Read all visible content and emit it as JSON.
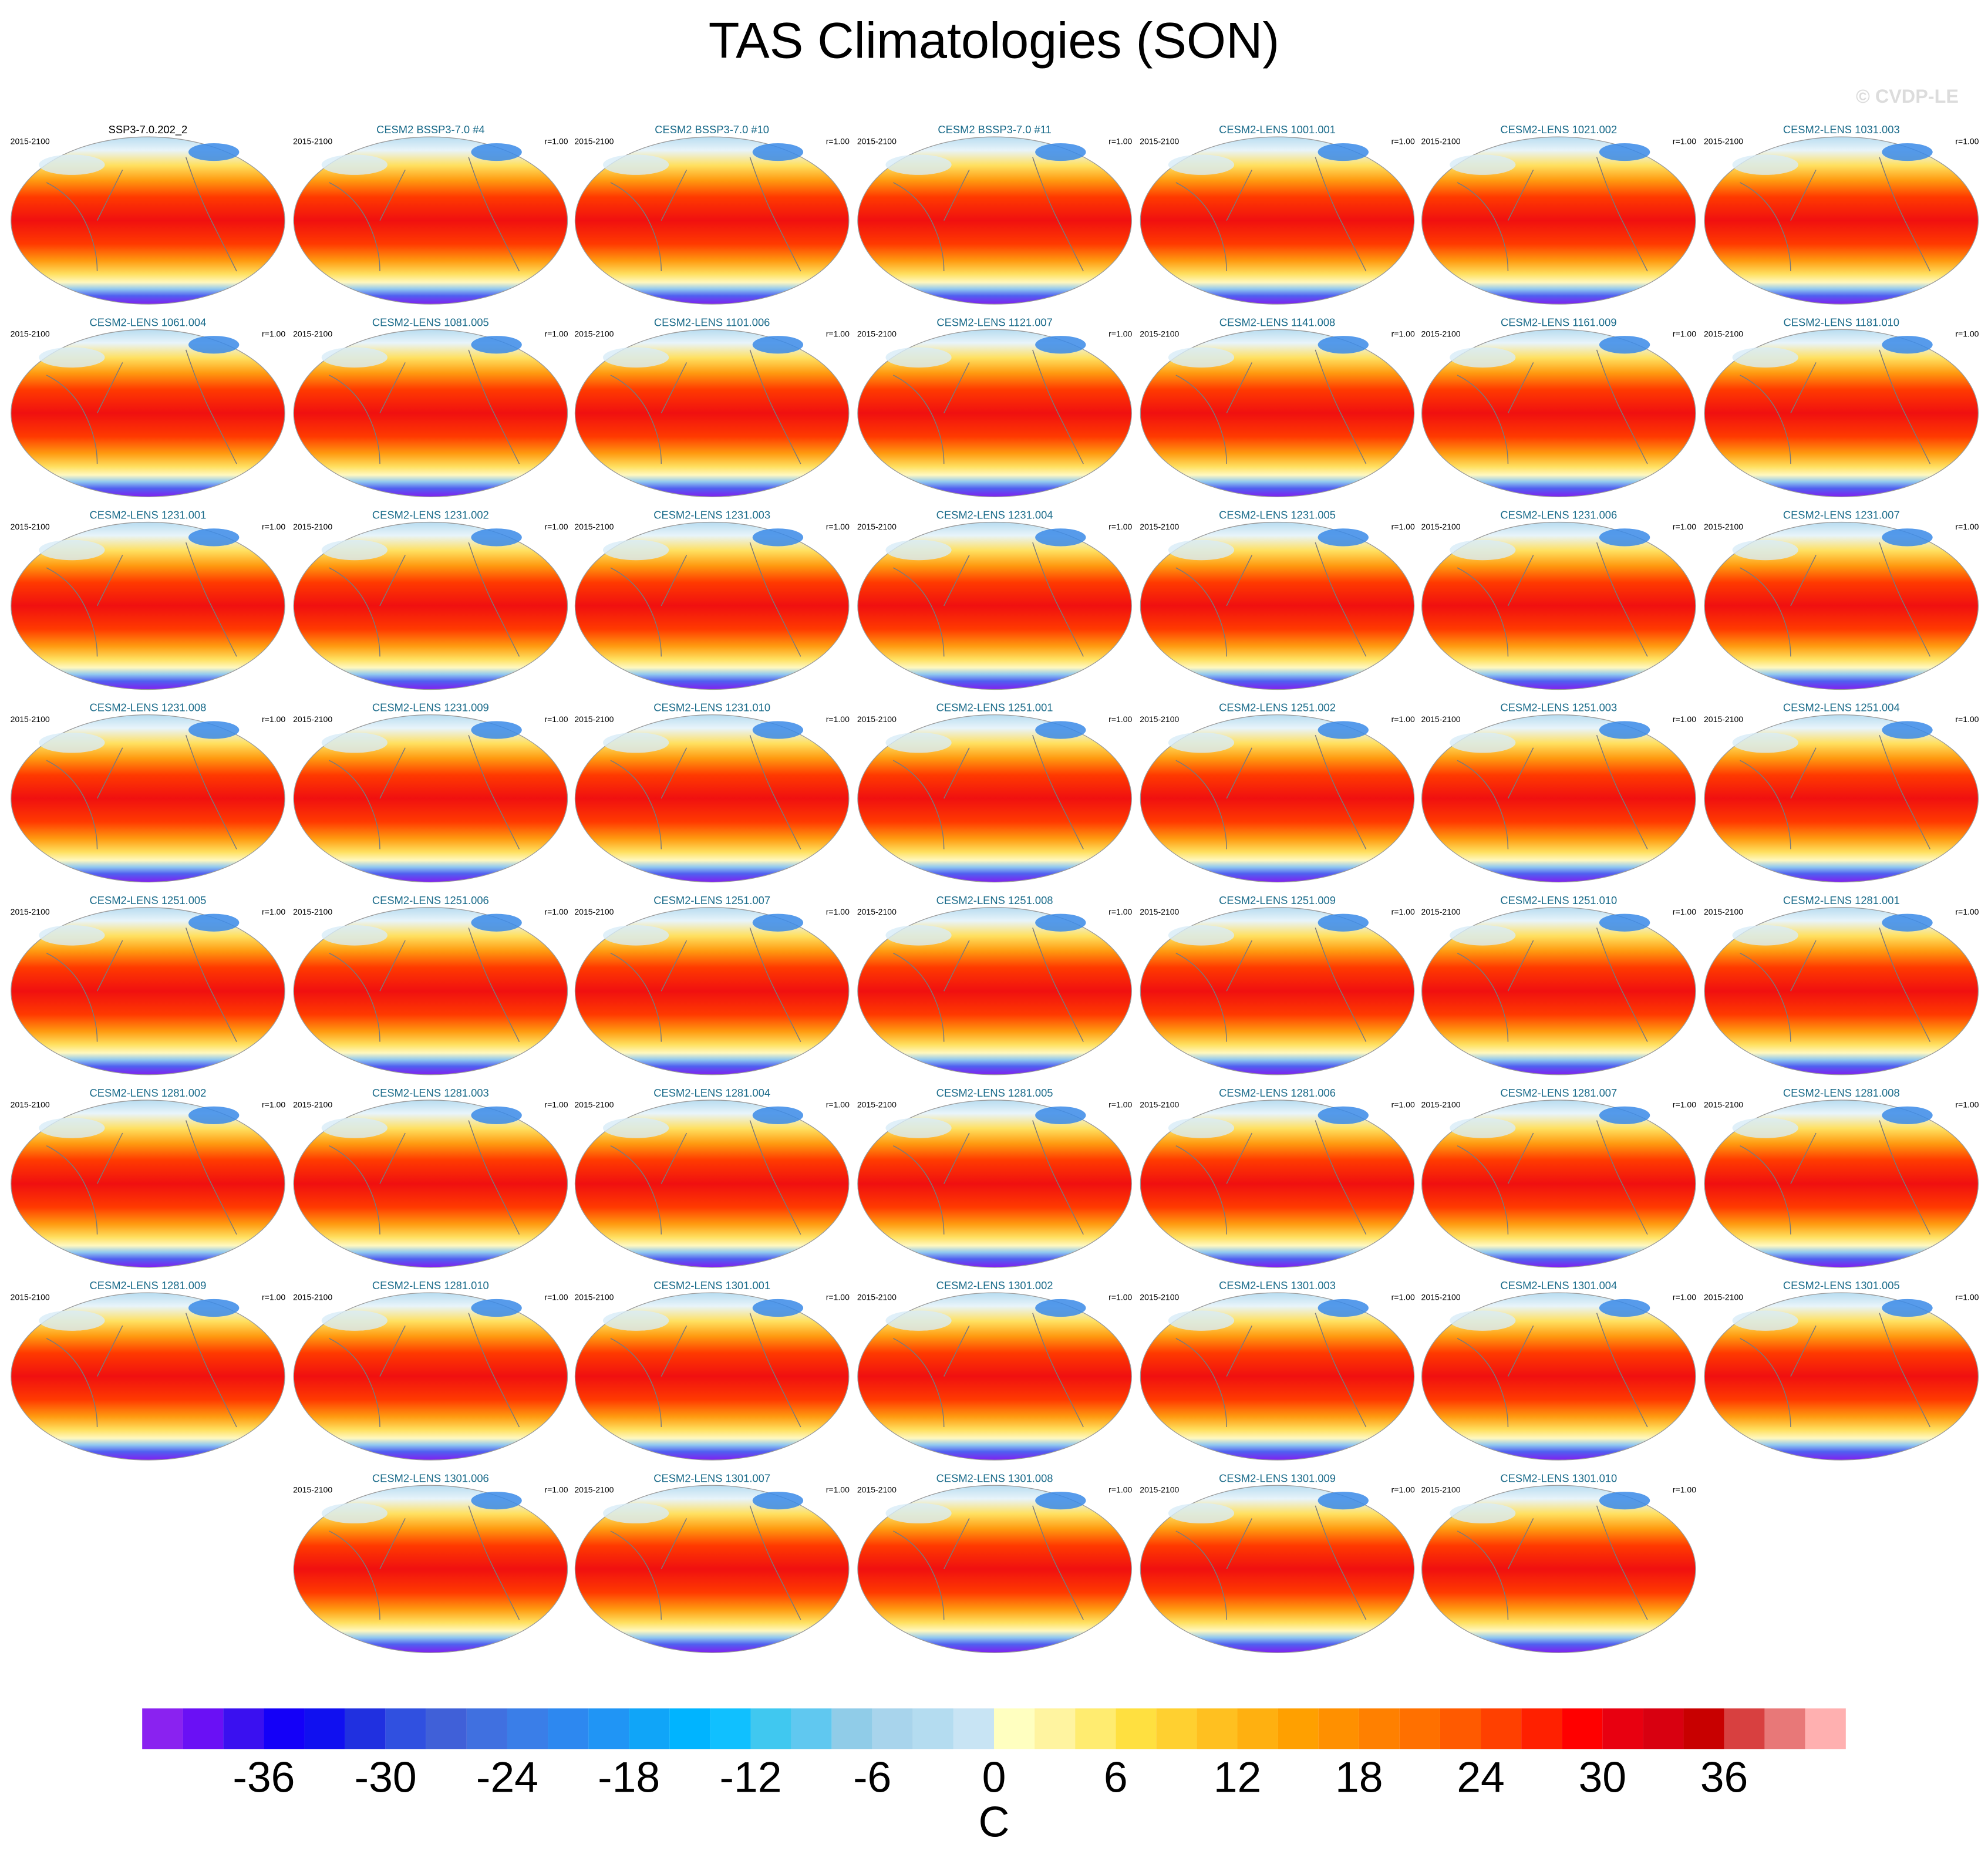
{
  "title": "TAS Climatologies (SON)",
  "watermark": "© CVDP-LE",
  "panels": [
    {
      "title": "SSP3-7.0.202_2",
      "period": "2015-2100"
    },
    {
      "title": "CESM2 BSSP3-7.0 #4",
      "period": "2015-2100",
      "r": "r=1.00"
    },
    {
      "title": "CESM2 BSSP3-7.0 #10",
      "period": "2015-2100",
      "r": "r=1.00"
    },
    {
      "title": "CESM2 BSSP3-7.0 #11",
      "period": "2015-2100",
      "r": "r=1.00"
    },
    {
      "title": "CESM2-LENS 1001.001",
      "period": "2015-2100",
      "r": "r=1.00"
    },
    {
      "title": "CESM2-LENS 1021.002",
      "period": "2015-2100",
      "r": "r=1.00"
    },
    {
      "title": "CESM2-LENS 1031.003",
      "period": "2015-2100",
      "r": "r=1.00"
    },
    {
      "title": "CESM2-LENS 1061.004",
      "period": "2015-2100",
      "r": "r=1.00"
    },
    {
      "title": "CESM2-LENS 1081.005",
      "period": "2015-2100",
      "r": "r=1.00"
    },
    {
      "title": "CESM2-LENS 1101.006",
      "period": "2015-2100",
      "r": "r=1.00"
    },
    {
      "title": "CESM2-LENS 1121.007",
      "period": "2015-2100",
      "r": "r=1.00"
    },
    {
      "title": "CESM2-LENS 1141.008",
      "period": "2015-2100",
      "r": "r=1.00"
    },
    {
      "title": "CESM2-LENS 1161.009",
      "period": "2015-2100",
      "r": "r=1.00"
    },
    {
      "title": "CESM2-LENS 1181.010",
      "period": "2015-2100",
      "r": "r=1.00"
    },
    {
      "title": "CESM2-LENS 1231.001",
      "period": "2015-2100",
      "r": "r=1.00"
    },
    {
      "title": "CESM2-LENS 1231.002",
      "period": "2015-2100",
      "r": "r=1.00"
    },
    {
      "title": "CESM2-LENS 1231.003",
      "period": "2015-2100",
      "r": "r=1.00"
    },
    {
      "title": "CESM2-LENS 1231.004",
      "period": "2015-2100",
      "r": "r=1.00"
    },
    {
      "title": "CESM2-LENS 1231.005",
      "period": "2015-2100",
      "r": "r=1.00"
    },
    {
      "title": "CESM2-LENS 1231.006",
      "period": "2015-2100",
      "r": "r=1.00"
    },
    {
      "title": "CESM2-LENS 1231.007",
      "period": "2015-2100",
      "r": "r=1.00"
    },
    {
      "title": "CESM2-LENS 1231.008",
      "period": "2015-2100",
      "r": "r=1.00"
    },
    {
      "title": "CESM2-LENS 1231.009",
      "period": "2015-2100",
      "r": "r=1.00"
    },
    {
      "title": "CESM2-LENS 1231.010",
      "period": "2015-2100",
      "r": "r=1.00"
    },
    {
      "title": "CESM2-LENS 1251.001",
      "period": "2015-2100",
      "r": "r=1.00"
    },
    {
      "title": "CESM2-LENS 1251.002",
      "period": "2015-2100",
      "r": "r=1.00"
    },
    {
      "title": "CESM2-LENS 1251.003",
      "period": "2015-2100",
      "r": "r=1.00"
    },
    {
      "title": "CESM2-LENS 1251.004",
      "period": "2015-2100",
      "r": "r=1.00"
    },
    {
      "title": "CESM2-LENS 1251.005",
      "period": "2015-2100",
      "r": "r=1.00"
    },
    {
      "title": "CESM2-LENS 1251.006",
      "period": "2015-2100",
      "r": "r=1.00"
    },
    {
      "title": "CESM2-LENS 1251.007",
      "period": "2015-2100",
      "r": "r=1.00"
    },
    {
      "title": "CESM2-LENS 1251.008",
      "period": "2015-2100",
      "r": "r=1.00"
    },
    {
      "title": "CESM2-LENS 1251.009",
      "period": "2015-2100",
      "r": "r=1.00"
    },
    {
      "title": "CESM2-LENS 1251.010",
      "period": "2015-2100",
      "r": "r=1.00"
    },
    {
      "title": "CESM2-LENS 1281.001",
      "period": "2015-2100",
      "r": "r=1.00"
    },
    {
      "title": "CESM2-LENS 1281.002",
      "period": "2015-2100",
      "r": "r=1.00"
    },
    {
      "title": "CESM2-LENS 1281.003",
      "period": "2015-2100",
      "r": "r=1.00"
    },
    {
      "title": "CESM2-LENS 1281.004",
      "period": "2015-2100",
      "r": "r=1.00"
    },
    {
      "title": "CESM2-LENS 1281.005",
      "period": "2015-2100",
      "r": "r=1.00"
    },
    {
      "title": "CESM2-LENS 1281.006",
      "period": "2015-2100",
      "r": "r=1.00"
    },
    {
      "title": "CESM2-LENS 1281.007",
      "period": "2015-2100",
      "r": "r=1.00"
    },
    {
      "title": "CESM2-LENS 1281.008",
      "period": "2015-2100",
      "r": "r=1.00"
    },
    {
      "title": "CESM2-LENS 1281.009",
      "period": "2015-2100",
      "r": "r=1.00"
    },
    {
      "title": "CESM2-LENS 1281.010",
      "period": "2015-2100",
      "r": "r=1.00"
    },
    {
      "title": "CESM2-LENS 1301.001",
      "period": "2015-2100",
      "r": "r=1.00"
    },
    {
      "title": "CESM2-LENS 1301.002",
      "period": "2015-2100",
      "r": "r=1.00"
    },
    {
      "title": "CESM2-LENS 1301.003",
      "period": "2015-2100",
      "r": "r=1.00"
    },
    {
      "title": "CESM2-LENS 1301.004",
      "period": "2015-2100",
      "r": "r=1.00"
    },
    {
      "title": "CESM2-LENS 1301.005",
      "period": "2015-2100",
      "r": "r=1.00"
    },
    {
      "title": "CESM2-LENS 1301.006",
      "period": "2015-2100",
      "r": "r=1.00"
    },
    {
      "title": "CESM2-LENS 1301.007",
      "period": "2015-2100",
      "r": "r=1.00"
    },
    {
      "title": "CESM2-LENS 1301.008",
      "period": "2015-2100",
      "r": "r=1.00"
    },
    {
      "title": "CESM2-LENS 1301.009",
      "period": "2015-2100",
      "r": "r=1.00"
    },
    {
      "title": "CESM2-LENS 1301.010",
      "period": "2015-2100",
      "r": "r=1.00"
    }
  ],
  "colorbar": {
    "lim": [
      -42,
      42
    ],
    "ticks": [
      -36,
      -30,
      -24,
      -18,
      -12,
      -6,
      0,
      6,
      12,
      18,
      24,
      30,
      36
    ],
    "label": "C",
    "colors": [
      "#8a22f0",
      "#6a10f5",
      "#3a10f0",
      "#1400f8",
      "#1010f0",
      "#2030e0",
      "#3050e0",
      "#4060d8",
      "#4070e0",
      "#3a7ee8",
      "#2d88f0",
      "#2095f5",
      "#10a5f8",
      "#00b4ff",
      "#10c0ff",
      "#40c8f0",
      "#60c8f0",
      "#90cce8",
      "#a8d4ec",
      "#b4dcf0",
      "#c8e4f4",
      "#ffffc0",
      "#fff4a0",
      "#ffec70",
      "#ffe040",
      "#ffd030",
      "#ffc020",
      "#ffb010",
      "#ffa000",
      "#ff9000",
      "#ff8000",
      "#ff7000",
      "#ff5a00",
      "#ff4000",
      "#ff2000",
      "#ff0000",
      "#e80010",
      "#d80010",
      "#c80000",
      "#d84040",
      "#e87878",
      "#ffb0b0"
    ]
  }
}
